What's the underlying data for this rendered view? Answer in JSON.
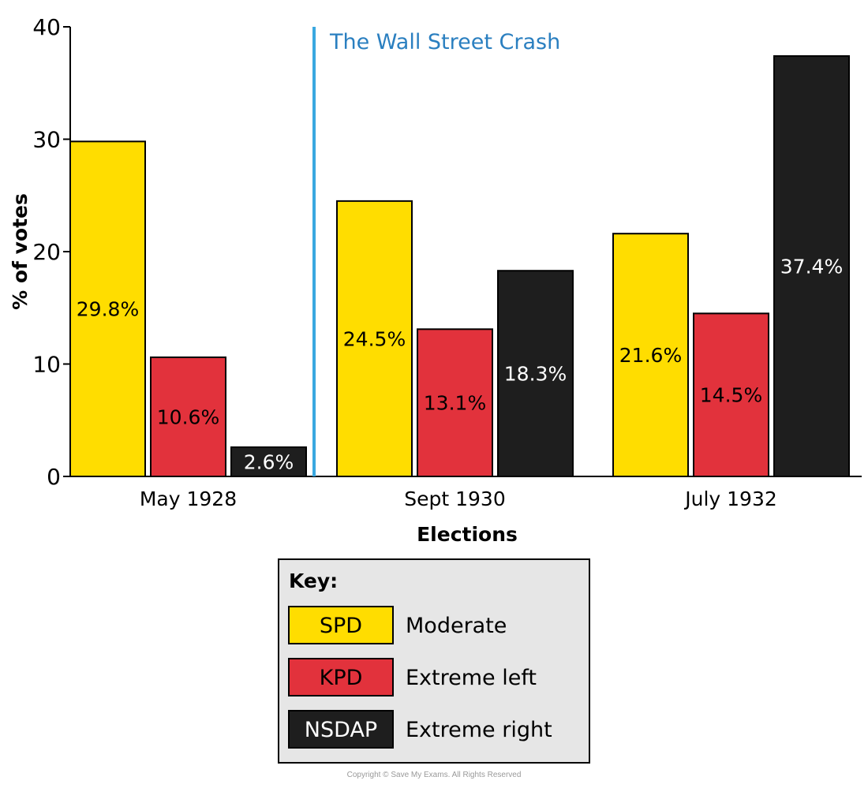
{
  "chart_data": {
    "type": "bar",
    "title": "",
    "xlabel": "Elections",
    "ylabel": "% of votes",
    "ylim": [
      0,
      40
    ],
    "yticks": [
      0,
      10,
      20,
      30,
      40
    ],
    "categories": [
      "May 1928",
      "Sept 1930",
      "July 1932"
    ],
    "series": [
      {
        "name": "SPD",
        "color": "#ffdd00",
        "label_color": "#000000",
        "values": [
          29.8,
          24.5,
          21.6
        ],
        "labels": [
          "29.8%",
          "24.5%",
          "21.6%"
        ]
      },
      {
        "name": "KPD",
        "color": "#e2323c",
        "label_color": "#000000",
        "values": [
          10.6,
          13.1,
          14.5
        ],
        "labels": [
          "10.6%",
          "13.1%",
          "14.5%"
        ]
      },
      {
        "name": "NSDAP",
        "color": "#1e1e1e",
        "label_color": "#ffffff",
        "values": [
          2.6,
          18.3,
          37.4
        ],
        "labels": [
          "2.6%",
          "18.3%",
          "37.4%"
        ]
      }
    ],
    "annotation": {
      "text": "The Wall Street Crash",
      "color": "#3aa8e0",
      "between": [
        "May 1928",
        "Sept 1930"
      ]
    },
    "legend": {
      "title": "Key:",
      "placement": "bottom-center",
      "entries": [
        {
          "name": "SPD",
          "description": "Moderate"
        },
        {
          "name": "KPD",
          "description": "Extreme left"
        },
        {
          "name": "NSDAP",
          "description": "Extreme right"
        }
      ]
    },
    "grid": false
  },
  "copyright": "Copyright © Save My Exams. All Rights Reserved"
}
